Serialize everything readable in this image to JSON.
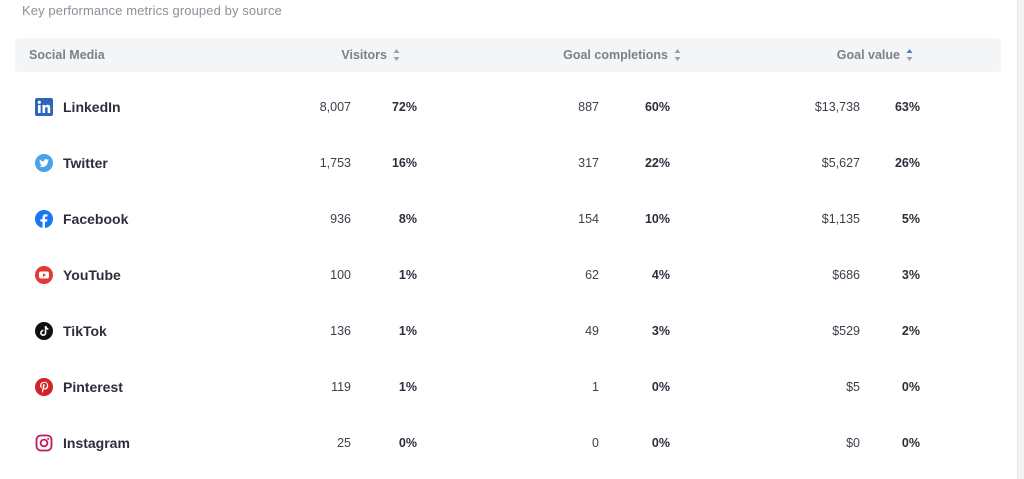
{
  "subtitle": "Key performance metrics grouped by source",
  "columns": {
    "media": "Social Media",
    "visitors": "Visitors",
    "goal_completions": "Goal completions",
    "goal_value": "Goal value"
  },
  "colors": {
    "linkedin": "#2d64bc",
    "twitter": "#4aa3e8",
    "facebook": "#1877f2",
    "youtube": "#e53935",
    "tiktok": "#111111",
    "pinterest": "#d0232a",
    "instagram": "#c2185b",
    "sort_arrow": "#3f7bd8"
  },
  "rows": [
    {
      "name": "LinkedIn",
      "icon": "linkedin-icon",
      "visitors": "8,007",
      "visitors_pct": "72%",
      "goals": "887",
      "goals_pct": "60%",
      "value": "$13,738",
      "value_pct": "63%"
    },
    {
      "name": "Twitter",
      "icon": "twitter-icon",
      "visitors": "1,753",
      "visitors_pct": "16%",
      "goals": "317",
      "goals_pct": "22%",
      "value": "$5,627",
      "value_pct": "26%"
    },
    {
      "name": "Facebook",
      "icon": "facebook-icon",
      "visitors": "936",
      "visitors_pct": "8%",
      "goals": "154",
      "goals_pct": "10%",
      "value": "$1,135",
      "value_pct": "5%"
    },
    {
      "name": "YouTube",
      "icon": "youtube-icon",
      "visitors": "100",
      "visitors_pct": "1%",
      "goals": "62",
      "goals_pct": "4%",
      "value": "$686",
      "value_pct": "3%"
    },
    {
      "name": "TikTok",
      "icon": "tiktok-icon",
      "visitors": "136",
      "visitors_pct": "1%",
      "goals": "49",
      "goals_pct": "3%",
      "value": "$529",
      "value_pct": "2%"
    },
    {
      "name": "Pinterest",
      "icon": "pinterest-icon",
      "visitors": "119",
      "visitors_pct": "1%",
      "goals": "1",
      "goals_pct": "0%",
      "value": "$5",
      "value_pct": "0%"
    },
    {
      "name": "Instagram",
      "icon": "instagram-icon",
      "visitors": "25",
      "visitors_pct": "0%",
      "goals": "0",
      "goals_pct": "0%",
      "value": "$0",
      "value_pct": "0%"
    }
  ]
}
